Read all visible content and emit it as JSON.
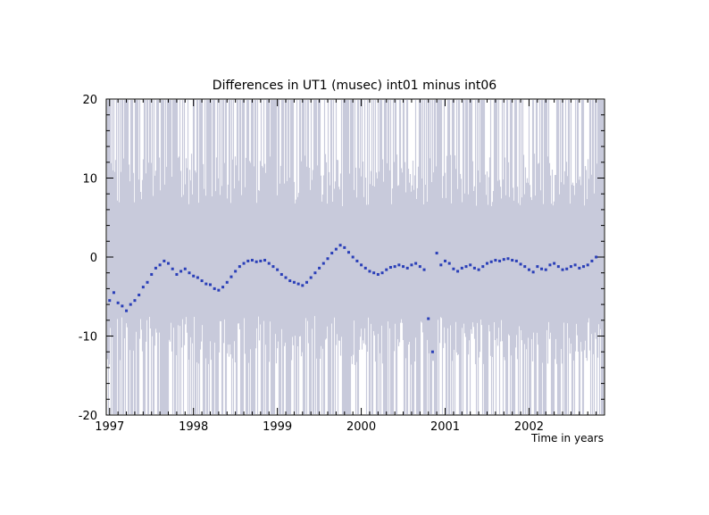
{
  "chart_data": {
    "type": "scatter",
    "title": "Differences in UT1 (musec)  int01 minus int06",
    "xlabel": "Time in years",
    "ylabel": "",
    "xlim": [
      1996.96,
      2002.9
    ],
    "ylim": [
      -20,
      20
    ],
    "x_ticks": [
      "1997",
      "1998",
      "1999",
      "2000",
      "2001",
      "2002"
    ],
    "y_ticks": [
      "20",
      "10",
      "0",
      "-10",
      "-20"
    ],
    "grid": false,
    "point_color": "#2a3fb8",
    "error_band_color": "#c8cadb",
    "series": [
      {
        "x": [
          1997.0,
          1997.05,
          1997.1,
          1997.15,
          1997.2,
          1997.25,
          1997.3,
          1997.35,
          1997.4,
          1997.45,
          1997.5,
          1997.55,
          1997.6,
          1997.65,
          1997.7,
          1997.75,
          1997.8,
          1997.85,
          1997.9,
          1997.95,
          1998.0,
          1998.05,
          1998.1,
          1998.15,
          1998.2,
          1998.25,
          1998.3,
          1998.35,
          1998.4,
          1998.45,
          1998.5,
          1998.55,
          1998.6,
          1998.65,
          1998.7,
          1998.75,
          1998.8,
          1998.85,
          1998.9,
          1998.95,
          1999.0,
          1999.05,
          1999.1,
          1999.15,
          1999.2,
          1999.25,
          1999.3,
          1999.35,
          1999.4,
          1999.45,
          1999.5,
          1999.55,
          1999.6,
          1999.65,
          1999.7,
          1999.75,
          1999.8,
          1999.85,
          1999.9,
          1999.95,
          2000.0,
          2000.05,
          2000.1,
          2000.15,
          2000.2,
          2000.25,
          2000.3,
          2000.35,
          2000.4,
          2000.45,
          2000.5,
          2000.55,
          2000.6,
          2000.65,
          2000.7,
          2000.75,
          2000.8,
          2000.85,
          2000.9,
          2000.95,
          2001.0,
          2001.05,
          2001.1,
          2001.15,
          2001.2,
          2001.25,
          2001.3,
          2001.35,
          2001.4,
          2001.45,
          2001.5,
          2001.55,
          2001.6,
          2001.65,
          2001.7,
          2001.75,
          2001.8,
          2001.85,
          2001.9,
          2001.95,
          2002.0,
          2002.05,
          2002.1,
          2002.15,
          2002.2,
          2002.25,
          2002.3,
          2002.35,
          2002.4,
          2002.45,
          2002.5,
          2002.55,
          2002.6,
          2002.65,
          2002.7,
          2002.75,
          2002.8
        ],
        "y": [
          -5.5,
          -4.5,
          -5.8,
          -6.2,
          -6.8,
          -6.0,
          -5.5,
          -4.8,
          -3.8,
          -3.2,
          -2.2,
          -1.4,
          -1.0,
          -0.5,
          -0.8,
          -1.5,
          -2.2,
          -1.8,
          -1.5,
          -2.0,
          -2.4,
          -2.6,
          -3.0,
          -3.4,
          -3.5,
          -4.0,
          -4.2,
          -3.8,
          -3.2,
          -2.5,
          -1.8,
          -1.2,
          -0.8,
          -0.5,
          -0.4,
          -0.6,
          -0.5,
          -0.4,
          -0.8,
          -1.2,
          -1.6,
          -2.2,
          -2.6,
          -3.0,
          -3.2,
          -3.4,
          -3.6,
          -3.2,
          -2.6,
          -2.0,
          -1.4,
          -0.8,
          -0.2,
          0.5,
          1.0,
          1.5,
          1.2,
          0.6,
          0.0,
          -0.5,
          -1.0,
          -1.4,
          -1.8,
          -2.0,
          -2.2,
          -2.0,
          -1.6,
          -1.3,
          -1.2,
          -1.0,
          -1.2,
          -1.4,
          -1.0,
          -0.8,
          -1.2,
          -1.6,
          -7.8,
          -12.0,
          0.5,
          -1.0,
          -0.5,
          -0.8,
          -1.5,
          -1.8,
          -1.4,
          -1.2,
          -1.0,
          -1.4,
          -1.6,
          -1.2,
          -0.8,
          -0.6,
          -0.4,
          -0.5,
          -0.3,
          -0.2,
          -0.4,
          -0.5,
          -0.9,
          -1.2,
          -1.6,
          -1.9,
          -1.2,
          -1.5,
          -1.6,
          -1.0,
          -0.8,
          -1.2,
          -1.6,
          -1.5,
          -1.2,
          -1.0,
          -1.4,
          -1.2,
          -1.0,
          -0.5,
          0.0
        ]
      }
    ]
  }
}
